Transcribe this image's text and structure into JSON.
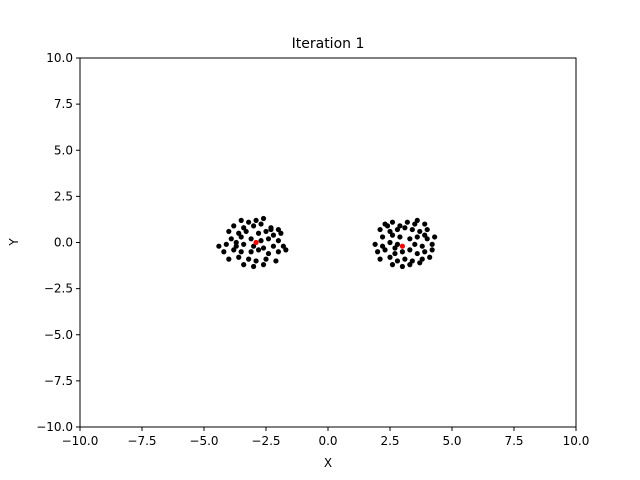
{
  "chart_data": {
    "type": "scatter",
    "title": "Iteration 1",
    "xlabel": "X",
    "ylabel": "Y",
    "xlim": [
      -10,
      10
    ],
    "ylim": [
      -10,
      10
    ],
    "grid": false,
    "x_ticks": [
      -10,
      -7.5,
      -5,
      -2.5,
      0,
      2.5,
      5,
      7.5,
      10
    ],
    "y_ticks": [
      -10,
      -7.5,
      -5,
      -2.5,
      0,
      2.5,
      5,
      7.5,
      10
    ],
    "x_tick_labels": [
      "−10.0",
      "−7.5",
      "−5.0",
      "−2.5",
      "0.0",
      "2.5",
      "5.0",
      "7.5",
      "10.0"
    ],
    "y_tick_labels": [
      "−10.0",
      "−7.5",
      "−5.0",
      "−2.5",
      "0.0",
      "2.5",
      "5.0",
      "7.5",
      "10.0"
    ],
    "series": [
      {
        "color": "#000000",
        "points": [
          [
            -3.5,
            1.2
          ],
          [
            -3.2,
            1.1
          ],
          [
            -2.9,
            1.2
          ],
          [
            -2.6,
            1.3
          ],
          [
            -3.8,
            0.9
          ],
          [
            -3.4,
            0.8
          ],
          [
            -3.0,
            0.9
          ],
          [
            -2.7,
            1.0
          ],
          [
            -2.3,
            0.8
          ],
          [
            -2.0,
            0.7
          ],
          [
            -4.0,
            0.6
          ],
          [
            -3.6,
            0.5
          ],
          [
            -3.3,
            0.6
          ],
          [
            -2.8,
            0.5
          ],
          [
            -2.5,
            0.6
          ],
          [
            -2.2,
            0.4
          ],
          [
            -1.9,
            0.5
          ],
          [
            -3.9,
            0.2
          ],
          [
            -3.5,
            0.3
          ],
          [
            -3.1,
            0.2
          ],
          [
            -2.7,
            0.1
          ],
          [
            -2.4,
            0.2
          ],
          [
            -2.0,
            0.1
          ],
          [
            -4.4,
            -0.2
          ],
          [
            -4.1,
            -0.1
          ],
          [
            -3.7,
            -0.2
          ],
          [
            -3.4,
            -0.1
          ],
          [
            -3.0,
            -0.2
          ],
          [
            -2.6,
            -0.3
          ],
          [
            -2.2,
            -0.2
          ],
          [
            -1.8,
            -0.2
          ],
          [
            -4.2,
            -0.5
          ],
          [
            -3.8,
            -0.4
          ],
          [
            -3.5,
            -0.5
          ],
          [
            -3.1,
            -0.5
          ],
          [
            -2.8,
            -0.4
          ],
          [
            -2.4,
            -0.6
          ],
          [
            -2.0,
            -0.5
          ],
          [
            -1.7,
            -0.4
          ],
          [
            -4.0,
            -0.9
          ],
          [
            -3.6,
            -0.8
          ],
          [
            -3.2,
            -0.9
          ],
          [
            -2.9,
            -1.0
          ],
          [
            -2.5,
            -0.9
          ],
          [
            -2.1,
            -1.0
          ],
          [
            -3.4,
            -1.2
          ],
          [
            -3.0,
            -1.3
          ],
          [
            -2.6,
            -1.2
          ],
          [
            -3.7,
            0.0
          ],
          [
            -2.3,
            0.7
          ],
          [
            2.3,
            1.0
          ],
          [
            2.6,
            1.1
          ],
          [
            2.9,
            0.9
          ],
          [
            3.2,
            1.1
          ],
          [
            3.6,
            1.2
          ],
          [
            3.9,
            1.0
          ],
          [
            2.1,
            0.7
          ],
          [
            2.5,
            0.6
          ],
          [
            2.8,
            0.7
          ],
          [
            3.1,
            0.8
          ],
          [
            3.4,
            0.7
          ],
          [
            3.7,
            0.6
          ],
          [
            4.0,
            0.7
          ],
          [
            2.2,
            0.3
          ],
          [
            2.6,
            0.4
          ],
          [
            2.9,
            0.3
          ],
          [
            3.3,
            0.2
          ],
          [
            3.6,
            0.3
          ],
          [
            4.0,
            0.2
          ],
          [
            4.3,
            0.3
          ],
          [
            1.9,
            -0.1
          ],
          [
            2.2,
            -0.2
          ],
          [
            2.5,
            0.0
          ],
          [
            2.8,
            -0.1
          ],
          [
            3.5,
            -0.1
          ],
          [
            3.8,
            -0.2
          ],
          [
            4.2,
            -0.1
          ],
          [
            2.0,
            -0.5
          ],
          [
            2.3,
            -0.4
          ],
          [
            2.7,
            -0.6
          ],
          [
            3.0,
            -0.5
          ],
          [
            3.3,
            -0.4
          ],
          [
            3.6,
            -0.6
          ],
          [
            3.9,
            -0.5
          ],
          [
            4.2,
            -0.4
          ],
          [
            2.1,
            -0.9
          ],
          [
            2.5,
            -0.8
          ],
          [
            2.8,
            -1.0
          ],
          [
            3.1,
            -0.9
          ],
          [
            3.4,
            -1.0
          ],
          [
            3.8,
            -0.9
          ],
          [
            4.1,
            -0.8
          ],
          [
            2.6,
            -1.2
          ],
          [
            3.0,
            -1.3
          ],
          [
            3.3,
            -1.2
          ],
          [
            3.7,
            -1.1
          ],
          [
            2.4,
            0.9
          ],
          [
            3.5,
            1.0
          ],
          [
            2.7,
            -0.3
          ],
          [
            3.9,
            0.4
          ]
        ]
      },
      {
        "color": "#ff0000",
        "points": [
          [
            -2.9,
            0.0
          ],
          [
            3.0,
            -0.2
          ]
        ]
      }
    ]
  }
}
